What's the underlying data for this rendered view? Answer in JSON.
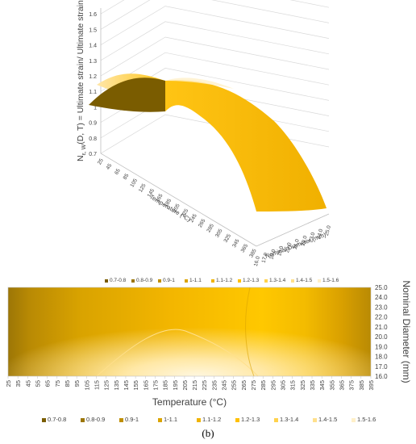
{
  "caption": "(b)",
  "chart_data": [
    {
      "type": "surface",
      "zlabel": "N_{ε, W}(D, T)  = Ultimate strain/ Ultimate strain_{RT}",
      "zlabel_main": "N",
      "zlabel_sub": "ε, W",
      "zlabel_mid": "(D, T)  = Ultimate strain/ Ultimate strain",
      "zlabel_sub2": "RT",
      "xlabel": "Temperature (°C)",
      "ylabel": "Nominal Diameter (mm)",
      "zticks": [
        "0.7",
        "0.8",
        "0.9",
        "1",
        "1.1",
        "1.2",
        "1.3",
        "1.4",
        "1.5",
        "1.6"
      ],
      "zlim": [
        0.7,
        1.6
      ],
      "xticks": [
        "25",
        "45",
        "65",
        "85",
        "105",
        "125",
        "145",
        "165",
        "185",
        "205",
        "225",
        "245",
        "265",
        "285",
        "305",
        "325",
        "345",
        "365",
        "385"
      ],
      "yticks": [
        "16.0",
        "17.0",
        "18.0",
        "19.0",
        "20.0",
        "21.0",
        "22.0",
        "23.0",
        "24.0",
        "25.0"
      ],
      "surface": {
        "temperature": [
          25,
          100,
          195,
          250,
          300,
          350,
          395
        ],
        "value_d16": [
          1.07,
          1.14,
          1.2,
          1.16,
          1.08,
          0.95,
          0.8
        ],
        "value_d25": [
          1.0,
          1.08,
          1.16,
          1.13,
          1.05,
          0.9,
          0.74
        ]
      },
      "legend": [
        "0.7-0.8",
        "0.8-0.9",
        "0.9-1",
        "1-1.1",
        "1.1-1.2",
        "1.2-1.3",
        "1.3-1.4",
        "1.4-1.5",
        "1.5-1.6"
      ],
      "legend_colors": [
        "#7a5c00",
        "#9c7606",
        "#bf8f00",
        "#dba400",
        "#f0b400",
        "#ffc000",
        "#ffd24d",
        "#ffe08c",
        "#fff0c8"
      ]
    },
    {
      "type": "heatmap",
      "xlabel": "Temperature (°C)",
      "ylabel": "Nominal Diameter (mm)",
      "xticks": [
        "25",
        "35",
        "45",
        "55",
        "65",
        "75",
        "85",
        "95",
        "105",
        "115",
        "125",
        "135",
        "145",
        "155",
        "165",
        "175",
        "185",
        "195",
        "205",
        "215",
        "225",
        "235",
        "245",
        "255",
        "265",
        "275",
        "285",
        "295",
        "305",
        "315",
        "325",
        "335",
        "345",
        "355",
        "365",
        "375",
        "385",
        "395"
      ],
      "yticks": [
        "25.0",
        "24.0",
        "23.0",
        "22.0",
        "21.0",
        "20.0",
        "19.0",
        "18.0",
        "17.0",
        "16.0"
      ],
      "xlim": [
        25,
        395
      ],
      "ylim": [
        16,
        25
      ],
      "legend": [
        "0.7-0.8",
        "0.8-0.9",
        "0.9-1",
        "1-1.1",
        "1.1-1.2",
        "1.2-1.3",
        "1.3-1.4",
        "1.4-1.5",
        "1.5-1.6"
      ],
      "legend_colors": [
        "#7a5c00",
        "#9c7606",
        "#bf8f00",
        "#dba400",
        "#f0b400",
        "#ffc000",
        "#ffd24d",
        "#ffe08c",
        "#fff0c8"
      ]
    }
  ]
}
